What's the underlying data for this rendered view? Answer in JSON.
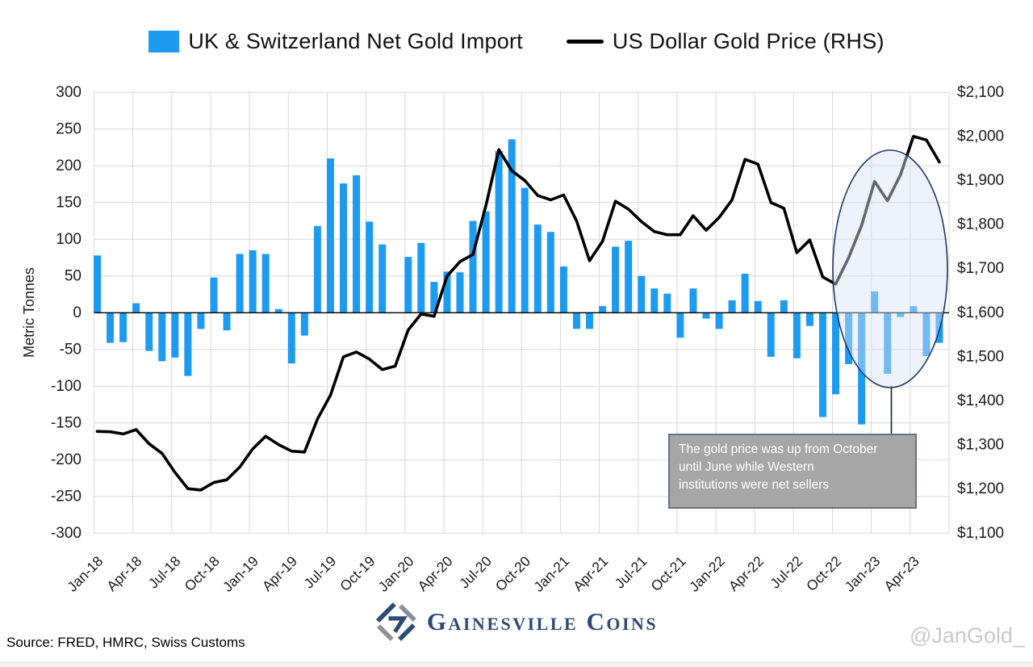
{
  "legend": {
    "bars_label": "UK & Switzerland Net Gold Import",
    "line_label": "US Dollar Gold Price (RHS)"
  },
  "colors": {
    "bar": "#1c9bf0",
    "line": "#000000",
    "grid": "#d9d9d9",
    "zero_axis": "#000000",
    "ellipse_stroke": "#1f3864",
    "ellipse_fill": "#dae3f3",
    "annotation_bg": "#a6a6a6",
    "annotation_text": "#ffffff",
    "brand_navy": "#2e4b74",
    "brand_gray": "#8d9096",
    "watermark": "#c9c9c9"
  },
  "chart_data": {
    "type": "bar+line",
    "title": "",
    "categories": [
      "Jan-18",
      "Feb-18",
      "Mar-18",
      "Apr-18",
      "May-18",
      "Jun-18",
      "Jul-18",
      "Aug-18",
      "Sep-18",
      "Oct-18",
      "Nov-18",
      "Dec-18",
      "Jan-19",
      "Feb-19",
      "Mar-19",
      "Apr-19",
      "May-19",
      "Jun-19",
      "Jul-19",
      "Aug-19",
      "Sep-19",
      "Oct-19",
      "Nov-19",
      "Dec-19",
      "Jan-20",
      "Feb-20",
      "Mar-20",
      "Apr-20",
      "May-20",
      "Jun-20",
      "Jul-20",
      "Aug-20",
      "Sep-20",
      "Oct-20",
      "Nov-20",
      "Dec-20",
      "Jan-21",
      "Feb-21",
      "Mar-21",
      "Apr-21",
      "May-21",
      "Jun-21",
      "Jul-21",
      "Aug-21",
      "Sep-21",
      "Oct-21",
      "Nov-21",
      "Dec-21",
      "Jan-22",
      "Feb-22",
      "Mar-22",
      "Apr-22",
      "May-22",
      "Jun-22",
      "Jul-22",
      "Aug-22",
      "Sep-22",
      "Oct-22",
      "Nov-22",
      "Dec-22",
      "Jan-23",
      "Feb-23",
      "Mar-23",
      "Apr-23",
      "May-23",
      "Jun-23"
    ],
    "series": [
      {
        "name": "UK & Switzerland Net Gold Import",
        "type": "bar",
        "axis": "left",
        "unit": "Metric Tonnes",
        "values": [
          78,
          -41,
          -40,
          13,
          -52,
          -66,
          -61,
          -86,
          -22,
          48,
          -24,
          80,
          85,
          80,
          5,
          -69,
          -31,
          118,
          210,
          176,
          187,
          124,
          93,
          0,
          76,
          95,
          42,
          56,
          55,
          125,
          138,
          220,
          236,
          170,
          120,
          110,
          63,
          -22,
          -22,
          9,
          90,
          98,
          50,
          33,
          26,
          -34,
          33,
          -8,
          -22,
          17,
          53,
          16,
          -60,
          17,
          -62,
          -18,
          -142,
          -111,
          -70,
          -152,
          29,
          -83,
          -6,
          9,
          -59,
          -41
        ]
      },
      {
        "name": "US Dollar Gold Price (RHS)",
        "type": "line",
        "axis": "right",
        "unit": "USD/oz",
        "values": [
          1331,
          1330,
          1325,
          1335,
          1303,
          1281,
          1238,
          1201,
          1198,
          1215,
          1221,
          1250,
          1291,
          1320,
          1301,
          1286,
          1284,
          1359,
          1413,
          1500,
          1511,
          1495,
          1471,
          1479,
          1561,
          1597,
          1592,
          1683,
          1716,
          1732,
          1843,
          1970,
          1922,
          1900,
          1866,
          1856,
          1867,
          1808,
          1718,
          1762,
          1853,
          1835,
          1807,
          1784,
          1777,
          1777,
          1820,
          1787,
          1816,
          1856,
          1948,
          1937,
          1850,
          1837,
          1736,
          1765,
          1681,
          1665,
          1725,
          1798,
          1898,
          1854,
          1913,
          2000,
          1992,
          1942
        ]
      }
    ],
    "left_axis": {
      "title": "Metric Tonnes",
      "min": -300,
      "max": 300,
      "step": 50,
      "tick_labels": [
        "300",
        "250",
        "200",
        "150",
        "100",
        "50",
        "0",
        "-50",
        "-100",
        "-150",
        "-200",
        "-250",
        "-300"
      ]
    },
    "right_axis": {
      "min": 1100,
      "max": 2100,
      "step": 100,
      "tick_labels": [
        "$2,100",
        "$2,000",
        "$1,900",
        "$1,800",
        "$1,700",
        "$1,600",
        "$1,500",
        "$1,400",
        "$1,300",
        "$1,200",
        "$1,100"
      ]
    },
    "x_axis": {
      "tick_labels": [
        "Jan-18",
        "Apr-18",
        "Jul-18",
        "Oct-18",
        "Jan-19",
        "Apr-19",
        "Jul-19",
        "Oct-19",
        "Jan-20",
        "Apr-20",
        "Jul-20",
        "Oct-20",
        "Jan-21",
        "Apr-21",
        "Jul-21",
        "Oct-21",
        "Jan-22",
        "Apr-22",
        "Jul-22",
        "Oct-22",
        "Jan-23",
        "Apr-23"
      ]
    },
    "grid": true,
    "legend_position": "top"
  },
  "annotation": {
    "lines": [
      "The gold price was up from October",
      "until June while Western",
      "institutions were net sellers"
    ]
  },
  "footer": {
    "source": "Source: FRED, HMRC, Swiss Customs",
    "brand": "Gainesville Coins",
    "watermark": "@JanGold_"
  }
}
